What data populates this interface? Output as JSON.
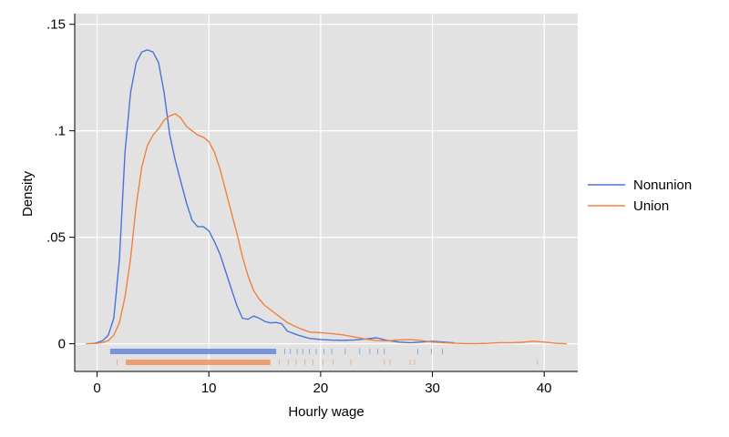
{
  "chart_data": {
    "type": "line",
    "xlabel": "Hourly wage",
    "ylabel": "Density",
    "xlim": [
      -2,
      43
    ],
    "ylim": [
      -0.013,
      0.155
    ],
    "xticks": [
      0,
      10,
      20,
      30,
      40
    ],
    "xtick_labels": [
      "0",
      "10",
      "20",
      "30",
      "40"
    ],
    "yticks": [
      0,
      0.05,
      0.1,
      0.15
    ],
    "ytick_labels": [
      "0",
      ".05",
      ".1",
      ".15"
    ],
    "grid": true,
    "legend_position": "right",
    "series": [
      {
        "name": "Nonunion",
        "color": "#4a72d8",
        "x": [
          -0.5,
          0,
          0.5,
          1,
          1.5,
          2,
          2.5,
          3,
          3.5,
          4,
          4.5,
          5,
          5.5,
          6,
          6.5,
          7,
          7.5,
          8,
          8.5,
          9,
          9.5,
          10,
          10.5,
          11,
          11.5,
          12,
          12.5,
          13,
          13.5,
          14,
          14.5,
          15,
          15.5,
          16,
          16.5,
          17,
          18,
          19,
          20,
          21,
          22,
          23,
          24,
          25,
          26,
          27,
          28,
          29,
          30,
          31,
          32
        ],
        "values": [
          0,
          0.0005,
          0.0015,
          0.004,
          0.012,
          0.04,
          0.09,
          0.118,
          0.132,
          0.137,
          0.138,
          0.137,
          0.132,
          0.118,
          0.098,
          0.086,
          0.076,
          0.066,
          0.058,
          0.055,
          0.055,
          0.053,
          0.048,
          0.042,
          0.034,
          0.026,
          0.018,
          0.012,
          0.0115,
          0.013,
          0.012,
          0.0105,
          0.0098,
          0.01,
          0.0095,
          0.006,
          0.004,
          0.0025,
          0.002,
          0.0017,
          0.0016,
          0.0018,
          0.0022,
          0.0028,
          0.0015,
          0.0008,
          0.0005,
          0.0008,
          0.0012,
          0.0008,
          0.0004
        ]
      },
      {
        "name": "Union",
        "color": "#f0823e",
        "x": [
          -1,
          0,
          0.5,
          1,
          1.5,
          2,
          2.5,
          3,
          3.5,
          4,
          4.5,
          5,
          5.5,
          6,
          6.5,
          7,
          7.5,
          8,
          8.5,
          9,
          9.5,
          10,
          10.5,
          11,
          11.5,
          12,
          12.5,
          13,
          13.5,
          14,
          14.5,
          15,
          16,
          17,
          18,
          19,
          20,
          21,
          22,
          23,
          24,
          25,
          26,
          27,
          28,
          29,
          30,
          31,
          32,
          33,
          34,
          35,
          36,
          37,
          38,
          39,
          40,
          41,
          42
        ],
        "values": [
          0,
          0.0002,
          0.0006,
          0.0015,
          0.004,
          0.01,
          0.022,
          0.04,
          0.065,
          0.083,
          0.093,
          0.098,
          0.101,
          0.105,
          0.107,
          0.108,
          0.106,
          0.102,
          0.1,
          0.098,
          0.097,
          0.095,
          0.09,
          0.082,
          0.072,
          0.062,
          0.052,
          0.041,
          0.032,
          0.025,
          0.021,
          0.018,
          0.014,
          0.01,
          0.0075,
          0.0055,
          0.0052,
          0.0048,
          0.0042,
          0.0032,
          0.0022,
          0.0015,
          0.0014,
          0.0018,
          0.002,
          0.0015,
          0.0008,
          0.0005,
          0.0002,
          0.0001,
          0.0001,
          0.0002,
          0.0005,
          0.0005,
          0.0007,
          0.0012,
          0.0008,
          0.0002,
          0
        ]
      }
    ],
    "rug": {
      "Nonunion": {
        "dense_range": [
          1.2,
          16
        ],
        "sparse_x": [
          16.8,
          17.3,
          17.9,
          18.4,
          19.0,
          19.6,
          20.3,
          21.0,
          22.2,
          23.5,
          24.4,
          25.1,
          25.7,
          28.7,
          29.9,
          30.9
        ]
      },
      "Union": {
        "dense_range": [
          2.6,
          15.5
        ],
        "sparse_x": [
          1.8,
          16.3,
          17.1,
          17.8,
          18.6,
          19.3,
          20.2,
          21.1,
          22.7,
          25.7,
          26.2,
          28.0,
          28.4,
          39.4
        ]
      }
    }
  }
}
